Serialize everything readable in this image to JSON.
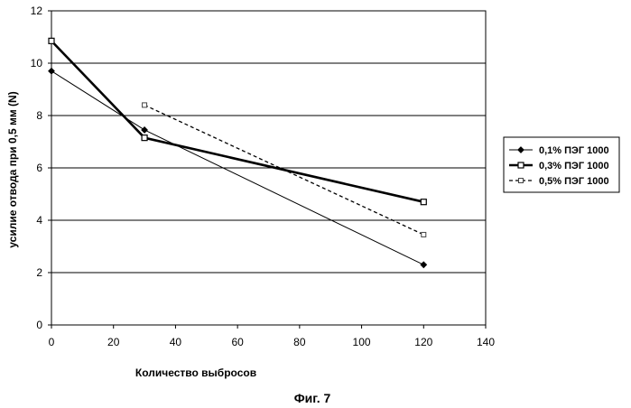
{
  "chart_data": {
    "type": "line",
    "title": "",
    "xlabel": "Количество выбросов",
    "ylabel": "усилие отвода  при 0,5 мм (N)",
    "xlim": [
      0,
      140
    ],
    "ylim": [
      0,
      12
    ],
    "xticks": [
      0,
      20,
      40,
      60,
      80,
      100,
      120,
      140
    ],
    "yticks": [
      0,
      2,
      4,
      6,
      8,
      10,
      12
    ],
    "grid": "horizontal",
    "legend_position": "right",
    "series": [
      {
        "name": "0,1% ПЭГ 1000",
        "x": [
          0,
          30,
          120
        ],
        "y": [
          9.7,
          7.45,
          2.3
        ],
        "color": "#000000",
        "style": "thin-solid",
        "marker": "diamond"
      },
      {
        "name": "0,3% ПЭГ 1000",
        "x": [
          0,
          30,
          120
        ],
        "y": [
          10.85,
          7.15,
          4.7
        ],
        "color": "#000000",
        "style": "thick-solid",
        "marker": "square"
      },
      {
        "name": "0,5% ПЭГ 1000",
        "x": [
          30,
          120
        ],
        "y": [
          8.4,
          3.45
        ],
        "color": "#000000",
        "style": "dashed",
        "marker": "square-small"
      }
    ]
  },
  "caption": "Фиг. 7"
}
